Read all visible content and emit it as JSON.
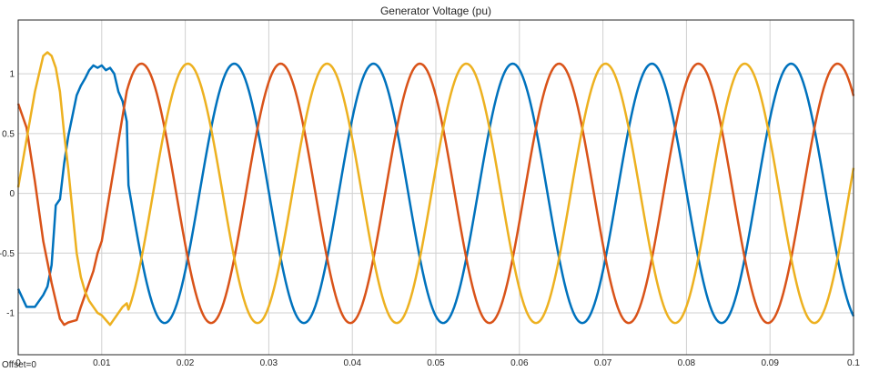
{
  "chart_data": {
    "type": "line",
    "title": "Generator Voltage (pu)",
    "xlabel": "",
    "ylabel": "",
    "xlim": [
      0,
      0.1
    ],
    "ylim": [
      -1.35,
      1.45
    ],
    "xticks": [
      "0",
      "0.01",
      "0.02",
      "0.03",
      "0.04",
      "0.05",
      "0.06",
      "0.07",
      "0.08",
      "0.09",
      "0.1"
    ],
    "xtick_values": [
      0,
      0.01,
      0.02,
      0.03,
      0.04,
      0.05,
      0.06,
      0.07,
      0.08,
      0.09,
      0.1
    ],
    "yticks": [
      "1",
      "0.5",
      "0",
      "-0.5",
      "-1"
    ],
    "ytick_values": [
      1,
      0.5,
      0,
      -0.5,
      -1
    ],
    "grid": true,
    "offset_label": "Offset=0",
    "series": [
      {
        "color": "#0072BD",
        "x": [
          0,
          0.001,
          0.002,
          0.003,
          0.0035,
          0.004,
          0.0045,
          0.005,
          0.0055,
          0.006,
          0.0065,
          0.007,
          0.0075,
          0.008,
          0.0085,
          0.009,
          0.0095,
          0.01,
          0.0105,
          0.011,
          0.0115,
          0.012,
          0.0125,
          0.013
        ],
        "y": [
          -0.8,
          -0.95,
          -0.95,
          -0.85,
          -0.78,
          -0.6,
          -0.1,
          -0.05,
          0.25,
          0.48,
          0.65,
          0.82,
          0.9,
          0.96,
          1.03,
          1.07,
          1.05,
          1.07,
          1.03,
          1.05,
          1.0,
          0.85,
          0.77,
          0.6
        ]
      },
      {
        "color": "#D95319",
        "x": [
          0,
          0.001,
          0.002,
          0.003,
          0.004,
          0.0045,
          0.005,
          0.0055,
          0.006,
          0.0065,
          0.007,
          0.0075,
          0.008,
          0.0085,
          0.009,
          0.0095,
          0.01
        ],
        "y": [
          0.75,
          0.55,
          0.1,
          -0.4,
          -0.75,
          -0.9,
          -1.05,
          -1.1,
          -1.08,
          -1.07,
          -1.06,
          -0.95,
          -0.85,
          -0.75,
          -0.65,
          -0.5,
          -0.4
        ]
      },
      {
        "color": "#EDB120",
        "x": [
          0,
          0.001,
          0.002,
          0.0025,
          0.003,
          0.0035,
          0.004,
          0.0045,
          0.005,
          0.0055,
          0.006,
          0.0065,
          0.007,
          0.0075,
          0.008,
          0.0085,
          0.009,
          0.0095,
          0.01,
          0.011,
          0.0115,
          0.012,
          0.0125,
          0.013
        ],
        "y": [
          0.05,
          0.45,
          0.85,
          1.0,
          1.15,
          1.18,
          1.15,
          1.05,
          0.85,
          0.5,
          0.2,
          -0.15,
          -0.5,
          -0.7,
          -0.82,
          -0.9,
          -0.95,
          -1.0,
          -1.02,
          -1.1,
          -1.05,
          -1.0,
          -0.95,
          -0.92
        ]
      }
    ],
    "steady_state": {
      "amplitude": 1.085,
      "frequency_hz": 60,
      "phase_shift_deg": [
        0,
        -120,
        120
      ],
      "from_x": 0.013,
      "to_x": 0.1
    }
  }
}
